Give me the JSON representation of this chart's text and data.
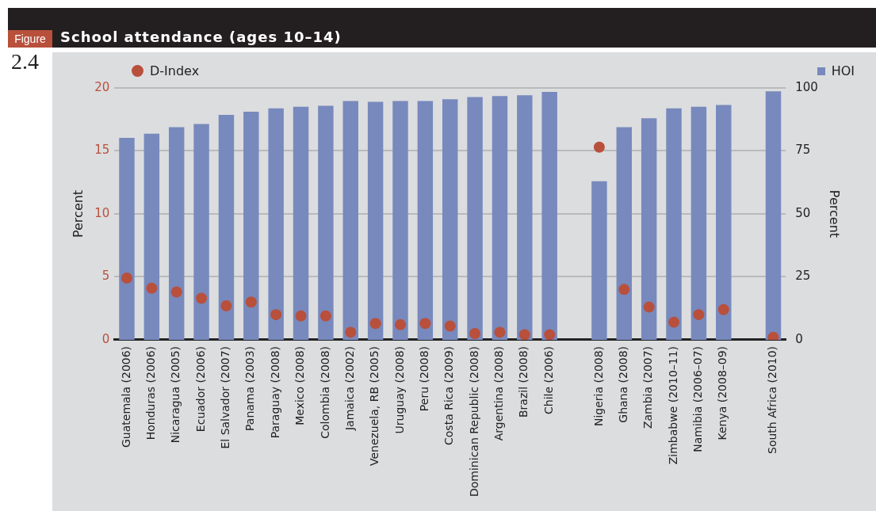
{
  "chart_data": {
    "type": "bar",
    "title": "School attendance (ages 10–14)",
    "annotations": [
      "Figure",
      "2.4"
    ],
    "categories": [
      "Guatemala (2006)",
      "Honduras (2006)",
      "Nicaragua (2005)",
      "Ecuador (2006)",
      "El Salvador (2007)",
      "Panama (2003)",
      "Paraguay (2008)",
      "Mexico (2008)",
      "Colombia (2008)",
      "Jamaica (2002)",
      "Venezuela, RB (2005)",
      "Uruguay (2008)",
      "Peru (2008)",
      "Costa Rica (2009)",
      "Dominican Republic (2008)",
      "Argentina (2008)",
      "Brazil (2008)",
      "Chile (2006)",
      null,
      "Nigeria (2008)",
      "Ghana (2008)",
      "Zambia (2007)",
      "Zimbabwe (2010–11)",
      "Namibia (2006–07)",
      "Kenya (2008–09)",
      null,
      "South Africa (2010)"
    ],
    "series": [
      {
        "name": "D-Index",
        "type": "scatter",
        "axis": "y",
        "color": "#b8503c",
        "values": [
          4.9,
          4.1,
          3.8,
          3.3,
          2.7,
          3.0,
          2.0,
          1.9,
          1.9,
          0.6,
          1.3,
          1.2,
          1.3,
          1.1,
          0.5,
          0.6,
          0.4,
          0.4,
          null,
          15.3,
          4.0,
          2.6,
          1.4,
          2.0,
          2.4,
          null,
          0.2
        ]
      },
      {
        "name": "HOI",
        "axis": "y2",
        "color": "#7889bd",
        "values": [
          80.2,
          81.8,
          84.4,
          85.7,
          89.3,
          90.6,
          91.9,
          92.5,
          92.9,
          94.8,
          94.5,
          94.8,
          94.8,
          95.5,
          96.4,
          96.8,
          97.1,
          98.4,
          null,
          63,
          84.4,
          88,
          91.9,
          92.5,
          93.2,
          null,
          98.7
        ]
      }
    ],
    "ylabel": "Percent",
    "y2label": "Percent",
    "ylim": [
      0,
      20
    ],
    "yticks": [
      0,
      5,
      10,
      15,
      20
    ],
    "y2lim": [
      0,
      100
    ],
    "y2ticks": [
      0,
      25,
      50,
      75,
      100
    ],
    "grid": "y",
    "legend": "top",
    "marker": "circle"
  }
}
